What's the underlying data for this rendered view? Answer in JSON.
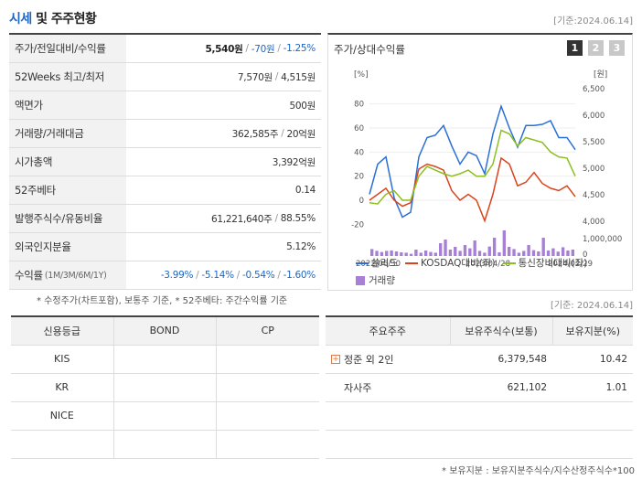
{
  "header": {
    "title_part1": "시세",
    "title_part2": " 및 주주현황",
    "base_date": "[기준:2024.06.14]"
  },
  "market": [
    {
      "label": "주가/전일대비/수익률",
      "sub": "",
      "v1": "5,540원",
      "v2": "-70원",
      "v3": "-1.25%"
    },
    {
      "label": "52Weeks 최고/최저",
      "sub": "",
      "v1": "7,570원",
      "v2": "4,515원"
    },
    {
      "label": "액면가",
      "sub": "",
      "v1": "500원"
    },
    {
      "label": "거래량/거래대금",
      "sub": "",
      "v1": "362,585주",
      "v2": "20억원"
    },
    {
      "label": "시가총액",
      "sub": "",
      "v1": "3,392억원"
    },
    {
      "label": "52주베타",
      "sub": "",
      "v1": "0.14"
    },
    {
      "label": "발행주식수/유동비율",
      "sub": "",
      "v1": "61,221,640주",
      "v2": "88.55%"
    },
    {
      "label": "외국인지분율",
      "sub": "",
      "v1": "5.12%"
    },
    {
      "label": "수익률",
      "sub": "(1M/3M/6M/1Y)",
      "v1": "-3.99%",
      "v2": "-5.14%",
      "v3": "-0.54%",
      "v4": "-1.60%"
    }
  ],
  "chart_panel": {
    "title": "주가/상대수익률",
    "tabs": [
      "1",
      "2",
      "3"
    ],
    "active_tab": 0
  },
  "chart_data": {
    "type": "line",
    "left_axis": {
      "unit": "[%]",
      "ticks": [
        80,
        60,
        40,
        20,
        0,
        -20
      ],
      "range": [
        -25,
        85
      ]
    },
    "right_axis": {
      "unit": "[원]",
      "ticks": [
        "6,500",
        "6,000",
        "5,500",
        "5,000",
        "4,500",
        "4,000"
      ],
      "range": [
        4000,
        6500
      ]
    },
    "volume_axis": {
      "ticks": [
        "1,000,000",
        "0"
      ],
      "max": 1600000
    },
    "x_labels": [
      "2022/06/30",
      "2023/04/28",
      "2024/02/29"
    ],
    "series": [
      {
        "name": "쏠리드",
        "color": "#2b6fd6",
        "values": [
          5,
          30,
          36,
          2,
          -14,
          -10,
          36,
          52,
          54,
          62,
          45,
          30,
          40,
          37,
          22,
          55,
          78,
          60,
          44,
          62,
          62,
          63,
          66,
          52,
          52,
          42
        ]
      },
      {
        "name": "KOSDAQ대비(좌)",
        "color": "#d9441c",
        "values": [
          0,
          5,
          10,
          0,
          -5,
          -2,
          26,
          30,
          28,
          25,
          8,
          0,
          5,
          0,
          -17,
          5,
          35,
          30,
          12,
          15,
          23,
          14,
          10,
          8,
          12,
          3
        ]
      },
      {
        "name": "통신장비대비(좌)",
        "color": "#8cbf1f",
        "values": [
          -2,
          -3,
          5,
          8,
          0,
          0,
          20,
          28,
          25,
          22,
          20,
          22,
          25,
          20,
          20,
          30,
          58,
          55,
          45,
          52,
          50,
          48,
          40,
          36,
          35,
          20
        ]
      }
    ],
    "volume": {
      "name": "거래량",
      "color": "#a77fd6",
      "values": [
        380000,
        280000,
        220000,
        280000,
        300000,
        250000,
        200000,
        180000,
        120000,
        350000,
        180000,
        300000,
        220000,
        180000,
        700000,
        900000,
        350000,
        500000,
        280000,
        600000,
        420000,
        850000,
        280000,
        180000,
        520000,
        1000000,
        200000,
        1400000,
        500000,
        380000,
        180000,
        280000,
        600000,
        320000,
        250000,
        1000000,
        300000,
        420000,
        240000,
        480000,
        300000,
        350000
      ]
    }
  },
  "footnote_left": "* 수정주가(차트포함), 보통주 기준, * 52주베타: 주간수익률 기준",
  "base_date2": "[기준: 2024.06.14]",
  "credit": {
    "headers": [
      "신용등급",
      "BOND",
      "CP"
    ],
    "rows": [
      [
        "KIS",
        "",
        ""
      ],
      [
        "KR",
        "",
        ""
      ],
      [
        "NICE",
        "",
        ""
      ],
      [
        "",
        "",
        ""
      ]
    ]
  },
  "holders": {
    "headers": [
      "주요주주",
      "보유주식수(보통)",
      "보유지분(%)"
    ],
    "rows": [
      {
        "name": "정준 외 2인",
        "shares": "6,379,548",
        "ratio": "10.42",
        "expand": true
      },
      {
        "name": "자사주",
        "shares": "621,102",
        "ratio": "1.01",
        "expand": false
      },
      {
        "name": "",
        "shares": "",
        "ratio": "",
        "expand": false
      }
    ]
  },
  "footnote_right": "* 보유지분 : 보유지분주식수/지수산정주식수*100"
}
